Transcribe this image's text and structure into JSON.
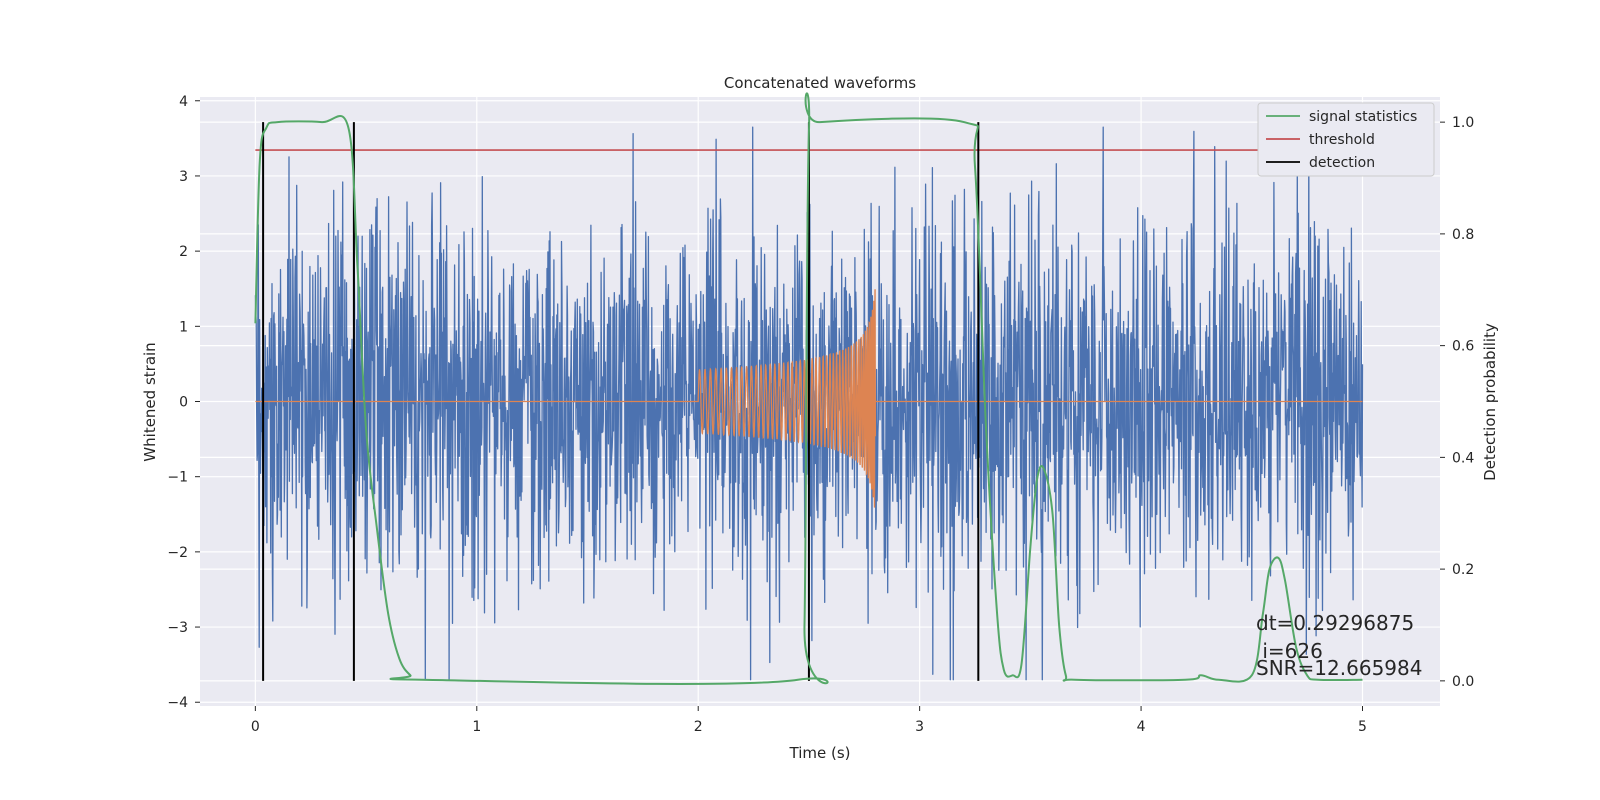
{
  "chart_data": {
    "type": "line",
    "title": "Concatenated waveforms",
    "xlabel": "Time (s)",
    "ylabel": "Whitened strain",
    "y2label": "Detection probability",
    "xlim": [
      -0.25,
      5.35
    ],
    "ylim": [
      -4.05,
      4.05
    ],
    "y2lim": [
      -0.045,
      1.045
    ],
    "xticks": [
      0,
      1,
      2,
      3,
      4,
      5
    ],
    "yticks": [
      -4,
      -3,
      -2,
      -1,
      0,
      1,
      2,
      3,
      4
    ],
    "y2ticks": [
      0.0,
      0.2,
      0.4,
      0.6,
      0.8,
      1.0
    ],
    "grid": true,
    "legend_position": "top-right",
    "series": [
      {
        "name": "",
        "description": "whitened noise strain",
        "axis": "left",
        "color": "#4c72b0",
        "x_range": [
          0,
          5
        ],
        "envelope": {
          "core_amplitude": 1.2,
          "extreme_min": -3.7,
          "extreme_max": 3.65
        }
      },
      {
        "name": "",
        "description": "injected chirp",
        "axis": "left",
        "color": "#dd8452",
        "x_range": [
          0,
          5
        ],
        "chirp": {
          "start": 2.0,
          "end": 2.8,
          "start_amplitude": 0.42,
          "peak_amplitude": 1.8
        }
      },
      {
        "name": "signal statistics",
        "axis": "right",
        "color": "#55a868",
        "x": [
          0,
          0.02,
          0.05,
          0.1,
          0.3,
          0.42,
          0.46,
          0.5,
          0.55,
          0.6,
          0.65,
          0.7,
          0.75,
          2.45,
          2.48,
          2.5,
          2.55,
          3.2,
          3.25,
          3.3,
          3.35,
          3.38,
          3.42,
          3.46,
          3.5,
          3.53,
          3.56,
          3.6,
          3.63,
          3.66,
          3.7,
          4.2,
          4.27,
          4.35,
          4.5,
          4.55,
          4.58,
          4.62,
          4.65,
          4.7,
          4.75,
          4.8,
          5.0
        ],
        "y": [
          0.64,
          0.93,
          0.99,
          1.0,
          1.0,
          0.99,
          0.75,
          0.45,
          0.27,
          0.12,
          0.04,
          0.01,
          0.002,
          0.002,
          0.1,
          0.98,
          1.0,
          1.0,
          0.92,
          0.45,
          0.12,
          0.02,
          0.01,
          0.03,
          0.24,
          0.36,
          0.38,
          0.3,
          0.1,
          0.01,
          0.002,
          0.002,
          0.01,
          0.002,
          0.01,
          0.12,
          0.2,
          0.22,
          0.18,
          0.06,
          0.01,
          0.002,
          0.002
        ]
      },
      {
        "name": "threshold",
        "axis": "right",
        "color": "#c44e52",
        "x": [
          0,
          5.0
        ],
        "y": [
          0.95,
          0.95
        ]
      },
      {
        "name": "detection",
        "axis": "right",
        "color": "#000000",
        "type": "vlines",
        "x": [
          0.035,
          0.445,
          2.5,
          3.265
        ],
        "ymin": 0.0,
        "ymax": 1.0
      }
    ],
    "annotations": [
      "dt=0.29296875",
      " i=626",
      "SNR=12.665984"
    ],
    "colors": {
      "background": "#eaeaf2",
      "grid": "#ffffff",
      "text": "#262626"
    }
  }
}
